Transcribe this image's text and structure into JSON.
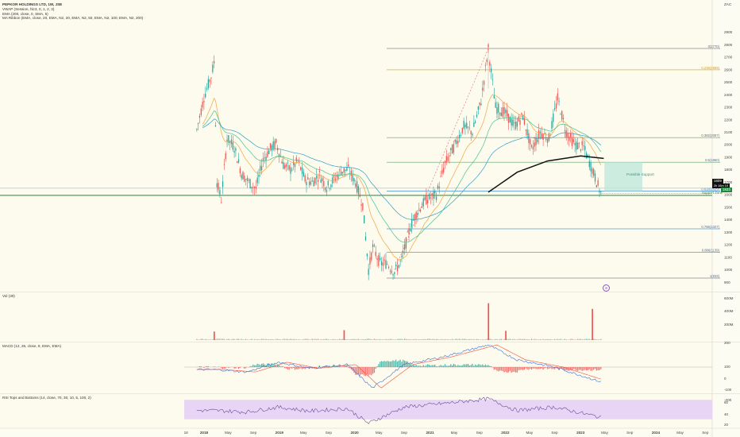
{
  "header": {
    "title": "PEPKOR HOLDINGS LTD, 1W, JSE",
    "lines": [
      "VWAP (Session, hlc3, 0, 1, 2, 3)",
      "EMA (200, close, 0, SMA, 5)",
      "MA Ribbon (EMA, close, 20, EMA, N2, 20, EMA, N2, 50, EMA, N2, 100, EMA, N2, 200)"
    ]
  },
  "currency": "ZAC",
  "price": {
    "tag": "1609",
    "countdown": "2h 16m 19",
    "support_value": "1633",
    "support_label": "Support Zone"
  },
  "zone_label": "Possible Support",
  "fib_labels": [
    "0(2770)",
    "0.236(2599)",
    "0.382(2057)",
    "0.5(1860)",
    "0.618(1629)",
    "0.786(1327)",
    "0.886(1139)",
    "1(933)"
  ],
  "panels": {
    "vol": "Vol (30)",
    "macd": "MACD (12, 26, close, 9, EMA, EMA)",
    "rsi": "RSI Tops and Bottoms (14, close, 70, 30, 10, 5, 100, 2)"
  },
  "axis": {
    "price_ticks": [
      "2900",
      "2800",
      "2700",
      "2600",
      "2500",
      "2400",
      "2300",
      "2200",
      "2100",
      "2000",
      "1900",
      "1800",
      "1700",
      "1600",
      "1500",
      "1400",
      "1300",
      "1200",
      "1100",
      "1000",
      "900"
    ],
    "vol_ticks": [
      "600M",
      "400M",
      "200M"
    ],
    "macd_ticks": [
      "200",
      "100",
      "0",
      "-100",
      "-200"
    ],
    "rsi_ticks": [
      "60",
      "40",
      "20"
    ],
    "time_ticks": [
      "18",
      "2018",
      "May",
      "Sep",
      "2019",
      "May",
      "Sep",
      "2020",
      "May",
      "Sep",
      "2021",
      "May",
      "Sep",
      "2022",
      "May",
      "Sep",
      "2023",
      "May",
      "Sep",
      "2024",
      "May",
      "Sep"
    ]
  },
  "colors": {
    "up": "#26a69a",
    "down": "#ef5350",
    "support": "#1e8a3c",
    "ema200": "#111111",
    "fib_grey": "#888888",
    "rsi_band": "#e8d5f5",
    "macd_line": "#3a6fd8",
    "signal_line": "#f0503c"
  },
  "chart_data": {
    "type": "candlestick",
    "interval": "1W",
    "x_range": [
      "2017-10",
      "2024-10"
    ],
    "y_range": [
      880,
      2960
    ],
    "close_path": [
      {
        "x": "2017-12-01",
        "y": 2120
      },
      {
        "x": "2018-01-05",
        "y": 2380
      },
      {
        "x": "2018-02-09",
        "y": 2550
      },
      {
        "x": "2018-02-23",
        "y": 2660
      },
      {
        "x": "2018-03-09",
        "y": 1700
      },
      {
        "x": "2018-03-30",
        "y": 1560
      },
      {
        "x": "2018-04-27",
        "y": 2050
      },
      {
        "x": "2018-06-01",
        "y": 1980
      },
      {
        "x": "2018-07-06",
        "y": 1770
      },
      {
        "x": "2018-08-10",
        "y": 1700
      },
      {
        "x": "2018-09-14",
        "y": 1650
      },
      {
        "x": "2018-10-19",
        "y": 1880
      },
      {
        "x": "2018-11-23",
        "y": 1970
      },
      {
        "x": "2018-12-21",
        "y": 2010
      },
      {
        "x": "2019-01-25",
        "y": 1840
      },
      {
        "x": "2019-03-01",
        "y": 1800
      },
      {
        "x": "2019-04-05",
        "y": 1870
      },
      {
        "x": "2019-05-10",
        "y": 1720
      },
      {
        "x": "2019-06-14",
        "y": 1700
      },
      {
        "x": "2019-07-19",
        "y": 1760
      },
      {
        "x": "2019-08-23",
        "y": 1660
      },
      {
        "x": "2019-09-27",
        "y": 1720
      },
      {
        "x": "2019-11-01",
        "y": 1790
      },
      {
        "x": "2019-12-06",
        "y": 1800
      },
      {
        "x": "2020-01-10",
        "y": 1700
      },
      {
        "x": "2020-02-14",
        "y": 1520
      },
      {
        "x": "2020-03-13",
        "y": 1000
      },
      {
        "x": "2020-04-03",
        "y": 1180
      },
      {
        "x": "2020-05-08",
        "y": 1050
      },
      {
        "x": "2020-06-12",
        "y": 1050
      },
      {
        "x": "2020-07-17",
        "y": 980
      },
      {
        "x": "2020-08-21",
        "y": 1080
      },
      {
        "x": "2020-10-02",
        "y": 1350
      },
      {
        "x": "2020-11-06",
        "y": 1470
      },
      {
        "x": "2020-12-18",
        "y": 1560
      },
      {
        "x": "2021-02-05",
        "y": 1600
      },
      {
        "x": "2021-03-19",
        "y": 1850
      },
      {
        "x": "2021-05-07",
        "y": 2000
      },
      {
        "x": "2021-06-18",
        "y": 2150
      },
      {
        "x": "2021-07-30",
        "y": 2100
      },
      {
        "x": "2021-09-10",
        "y": 2350
      },
      {
        "x": "2021-10-15",
        "y": 2770
      },
      {
        "x": "2021-11-19",
        "y": 2300
      },
      {
        "x": "2022-01-07",
        "y": 2250
      },
      {
        "x": "2022-02-18",
        "y": 2150
      },
      {
        "x": "2022-04-01",
        "y": 2230
      },
      {
        "x": "2022-05-13",
        "y": 1960
      },
      {
        "x": "2022-06-24",
        "y": 2100
      },
      {
        "x": "2022-08-05",
        "y": 2050
      },
      {
        "x": "2022-09-16",
        "y": 2370
      },
      {
        "x": "2022-10-28",
        "y": 2100
      },
      {
        "x": "2022-12-09",
        "y": 2000
      },
      {
        "x": "2023-01-20",
        "y": 1980
      },
      {
        "x": "2023-03-03",
        "y": 1800
      },
      {
        "x": "2023-04-14",
        "y": 1609
      }
    ],
    "ema200_path": [
      {
        "x": "2021-10-15",
        "y": 1620
      },
      {
        "x": "2022-03-04",
        "y": 1780
      },
      {
        "x": "2022-07-29",
        "y": 1870
      },
      {
        "x": "2023-01-06",
        "y": 1910
      },
      {
        "x": "2023-04-28",
        "y": 1890
      }
    ],
    "fib_levels": [
      {
        "label": "0(2770)",
        "value": 2770
      },
      {
        "label": "0.236(2599)",
        "value": 2599
      },
      {
        "label": "0.382(2057)",
        "value": 2057
      },
      {
        "label": "0.5(1860)",
        "value": 1860
      },
      {
        "label": "0.618(1629)",
        "value": 1629
      },
      {
        "label": "0.786(1327)",
        "value": 1327
      },
      {
        "label": "0.886(1139)",
        "value": 1139
      },
      {
        "label": "1(933)",
        "value": 933
      }
    ],
    "support_level": 1633,
    "zone": {
      "x0": "2023-05",
      "x1": "2023-11",
      "y0": 1630,
      "y1": 1860
    },
    "volume_spikes": [
      {
        "x": "2018-02-23",
        "v": 120
      },
      {
        "x": "2019-11-15",
        "v": 140
      },
      {
        "x": "2021-10-15",
        "v": 520
      },
      {
        "x": "2022-01-07",
        "v": 130
      },
      {
        "x": "2023-03-03",
        "v": 440
      }
    ],
    "macd_path": [
      {
        "x": "2018-03-01",
        "y": -20
      },
      {
        "x": "2018-08-01",
        "y": -40
      },
      {
        "x": "2019-01-01",
        "y": 40
      },
      {
        "x": "2019-06-01",
        "y": -10
      },
      {
        "x": "2019-12-01",
        "y": 20
      },
      {
        "x": "2020-04-01",
        "y": -170
      },
      {
        "x": "2020-09-01",
        "y": 20
      },
      {
        "x": "2021-03-01",
        "y": 80
      },
      {
        "x": "2021-10-15",
        "y": 180
      },
      {
        "x": "2022-03-01",
        "y": 60
      },
      {
        "x": "2022-09-01",
        "y": 0
      },
      {
        "x": "2023-04-14",
        "y": -120
      }
    ],
    "rsi_path": [
      {
        "x": "2018-03-01",
        "y": 48
      },
      {
        "x": "2018-08-01",
        "y": 45
      },
      {
        "x": "2019-01-01",
        "y": 55
      },
      {
        "x": "2019-06-01",
        "y": 47
      },
      {
        "x": "2019-12-01",
        "y": 52
      },
      {
        "x": "2020-03-13",
        "y": 22
      },
      {
        "x": "2020-09-01",
        "y": 55
      },
      {
        "x": "2021-03-01",
        "y": 62
      },
      {
        "x": "2021-10-15",
        "y": 72
      },
      {
        "x": "2022-03-01",
        "y": 48
      },
      {
        "x": "2022-09-01",
        "y": 55
      },
      {
        "x": "2023-04-14",
        "y": 34
      }
    ]
  }
}
